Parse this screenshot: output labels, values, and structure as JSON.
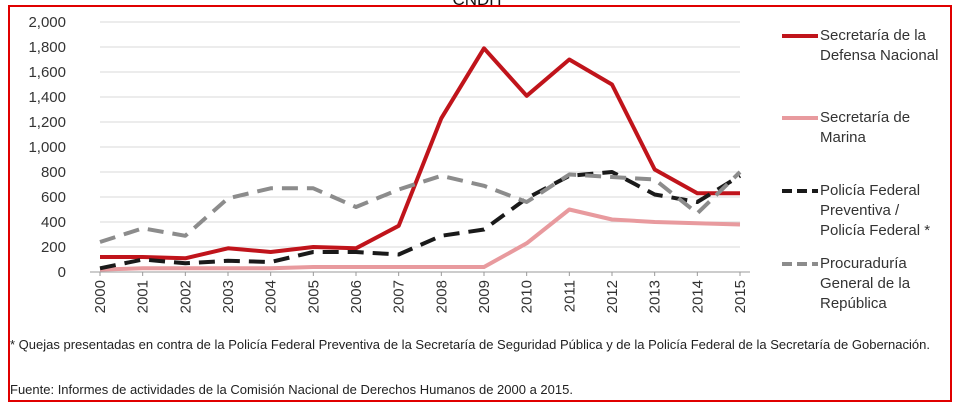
{
  "header": {
    "title": "CNDH"
  },
  "chart_data": {
    "type": "line",
    "x": [
      "2000",
      "2001",
      "2002",
      "2003",
      "2004",
      "2005",
      "2006",
      "2007",
      "2008",
      "2009",
      "2010",
      "2011",
      "2012",
      "2013",
      "2014",
      "2015"
    ],
    "ylim": [
      0,
      2000
    ],
    "yticks": [
      0,
      200,
      400,
      600,
      800,
      1000,
      1200,
      1400,
      1600,
      1800,
      2000
    ],
    "ytick_labels": [
      "0",
      "200",
      "400",
      "600",
      "800",
      "1,000",
      "1,200",
      "1,400",
      "1,600",
      "1,800",
      "2,000"
    ],
    "grid": true,
    "legend_position": "right",
    "series": [
      {
        "name": "Secretaría de la Defensa Nacional",
        "legend_lines": "Secretaría de la\nDefensa Nacional",
        "color": "#c0141b",
        "dash": "solid",
        "values": [
          120,
          120,
          110,
          190,
          160,
          200,
          190,
          370,
          1230,
          1790,
          1410,
          1700,
          1500,
          820,
          630,
          630
        ]
      },
      {
        "name": "Secretaría de Marina",
        "legend_lines": "Secretaría de\nMarina",
        "color": "#e89a9e",
        "dash": "solid",
        "values": [
          20,
          30,
          30,
          30,
          30,
          40,
          40,
          40,
          40,
          40,
          230,
          500,
          420,
          400,
          390,
          380
        ]
      },
      {
        "name": "Policía Federal Preventiva / Policía Federal *",
        "legend_lines": "Policía Federal\nPreventiva /\nPolicía Federal *",
        "color": "#1a1a1a",
        "dash": "dashed",
        "values": [
          30,
          100,
          70,
          90,
          80,
          160,
          160,
          140,
          290,
          340,
          590,
          770,
          800,
          620,
          560,
          770
        ]
      },
      {
        "name": "Procuraduría General de la República",
        "legend_lines": "Procuraduría\nGeneral de la\nRepública",
        "color": "#8c8c8c",
        "dash": "dashed",
        "values": [
          240,
          350,
          290,
          590,
          670,
          670,
          520,
          660,
          770,
          690,
          560,
          780,
          760,
          740,
          470,
          800
        ]
      }
    ]
  },
  "notes": {
    "footnote": "* Quejas presentadas en contra de la Policía Federal Preventiva de la Secretaría de Seguridad Pública y de la Policía Federal de la Secretaría de Gobernación.",
    "source": "Fuente: Informes de actividades de la Comisión Nacional de Derechos Humanos de 2000 a 2015."
  }
}
